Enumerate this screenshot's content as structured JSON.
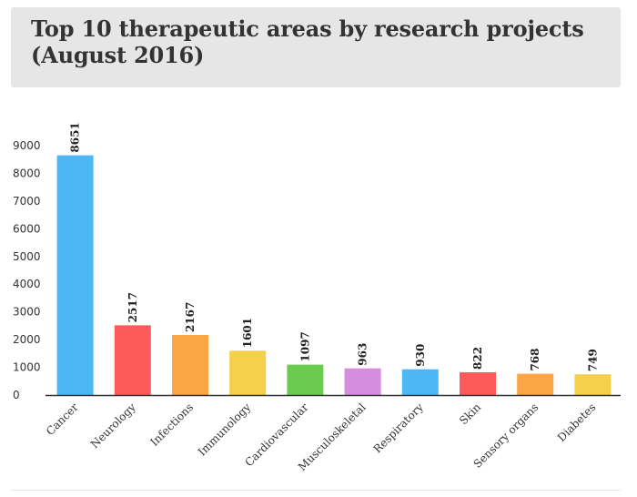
{
  "title_lines": [
    "Top 10 therapeutic areas by research projects",
    "(August 2016)"
  ],
  "chart_data": {
    "type": "bar",
    "title": "Top 10 therapeutic areas by research projects (August 2016)",
    "categories": [
      "Cancer",
      "Neurology",
      "Infections",
      "Immunology",
      "Cardiovascular",
      "Musculoskeletal",
      "Respiratory",
      "Skin",
      "Sensory organs",
      "Diabetes"
    ],
    "values": [
      8651,
      2517,
      2167,
      1601,
      1097,
      963,
      930,
      822,
      768,
      749
    ],
    "colors": [
      "#4bb8f4",
      "#ff5a5a",
      "#fba544",
      "#f5d04a",
      "#6acb4f",
      "#d68de0",
      "#4bb8f4",
      "#ff5a5a",
      "#fba544",
      "#f5d04a"
    ],
    "yticks": [
      0,
      1000,
      2000,
      3000,
      4000,
      5000,
      6000,
      7000,
      8000,
      9000
    ],
    "ylim": [
      0,
      9000
    ],
    "xlabel": "",
    "ylabel": "",
    "grid": false,
    "legend": "none"
  }
}
